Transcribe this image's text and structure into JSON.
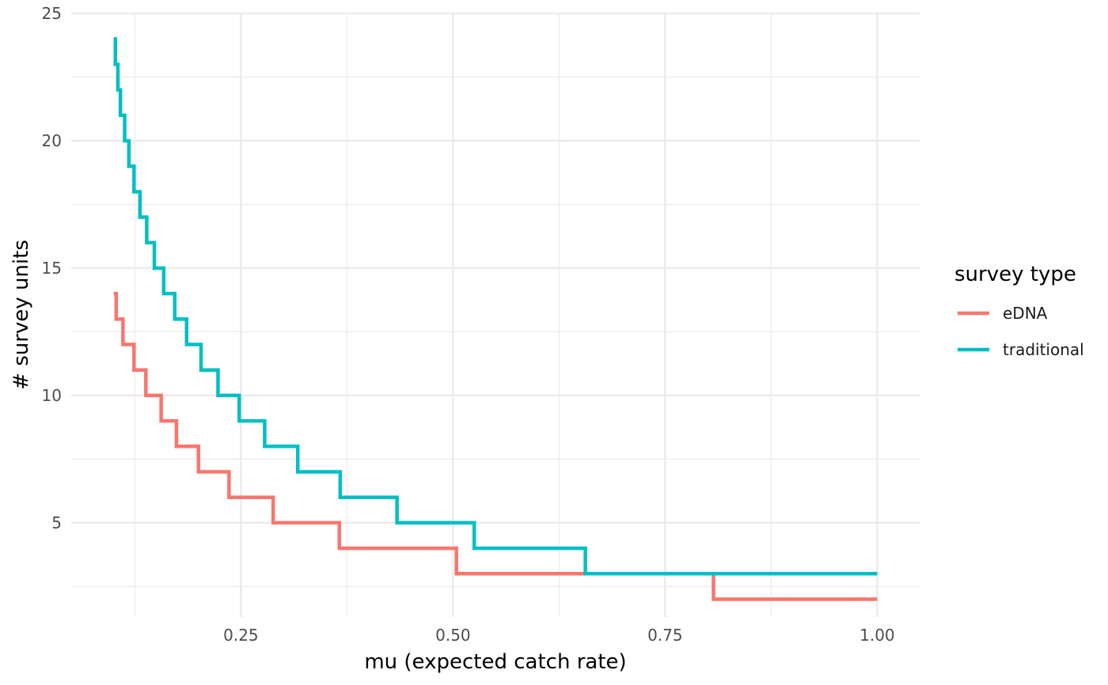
{
  "chart_data": {
    "type": "line",
    "step": true,
    "title": "",
    "xlabel": "mu (expected catch rate)",
    "ylabel": "# survey units",
    "xlim": [
      0.05,
      1.05
    ],
    "ylim": [
      1.3,
      25
    ],
    "x_ticks": [
      0.25,
      0.5,
      0.75,
      1.0
    ],
    "x_tick_labels": [
      "0.25",
      "0.50",
      "0.75",
      "1.00"
    ],
    "y_ticks": [
      5,
      10,
      15,
      20,
      25
    ],
    "y_tick_labels": [
      "5",
      "10",
      "15",
      "20",
      "25"
    ],
    "grid": true,
    "legend": {
      "title": "survey type",
      "position": "right"
    },
    "series": [
      {
        "name": "eDNA",
        "color": "#F8766D",
        "x": [
          0.1,
          0.103,
          0.111,
          0.124,
          0.138,
          0.156,
          0.174,
          0.2,
          0.236,
          0.288,
          0.366,
          0.504,
          0.807,
          1.0
        ],
        "values": [
          14,
          13,
          12,
          11,
          10,
          9,
          8,
          7,
          6,
          5,
          4,
          3,
          2,
          2
        ]
      },
      {
        "name": "traditional",
        "color": "#00BFC4",
        "x": [
          0.1,
          0.102,
          0.105,
          0.108,
          0.113,
          0.118,
          0.124,
          0.131,
          0.139,
          0.148,
          0.159,
          0.172,
          0.186,
          0.203,
          0.223,
          0.248,
          0.278,
          0.317,
          0.367,
          0.434,
          0.525,
          0.656,
          0.864,
          1.0
        ],
        "values": [
          24,
          23,
          22,
          21,
          20,
          19,
          18,
          17,
          16,
          15,
          14,
          13,
          12,
          11,
          10,
          9,
          8,
          7,
          6,
          5,
          4,
          3,
          3,
          3
        ]
      }
    ]
  }
}
